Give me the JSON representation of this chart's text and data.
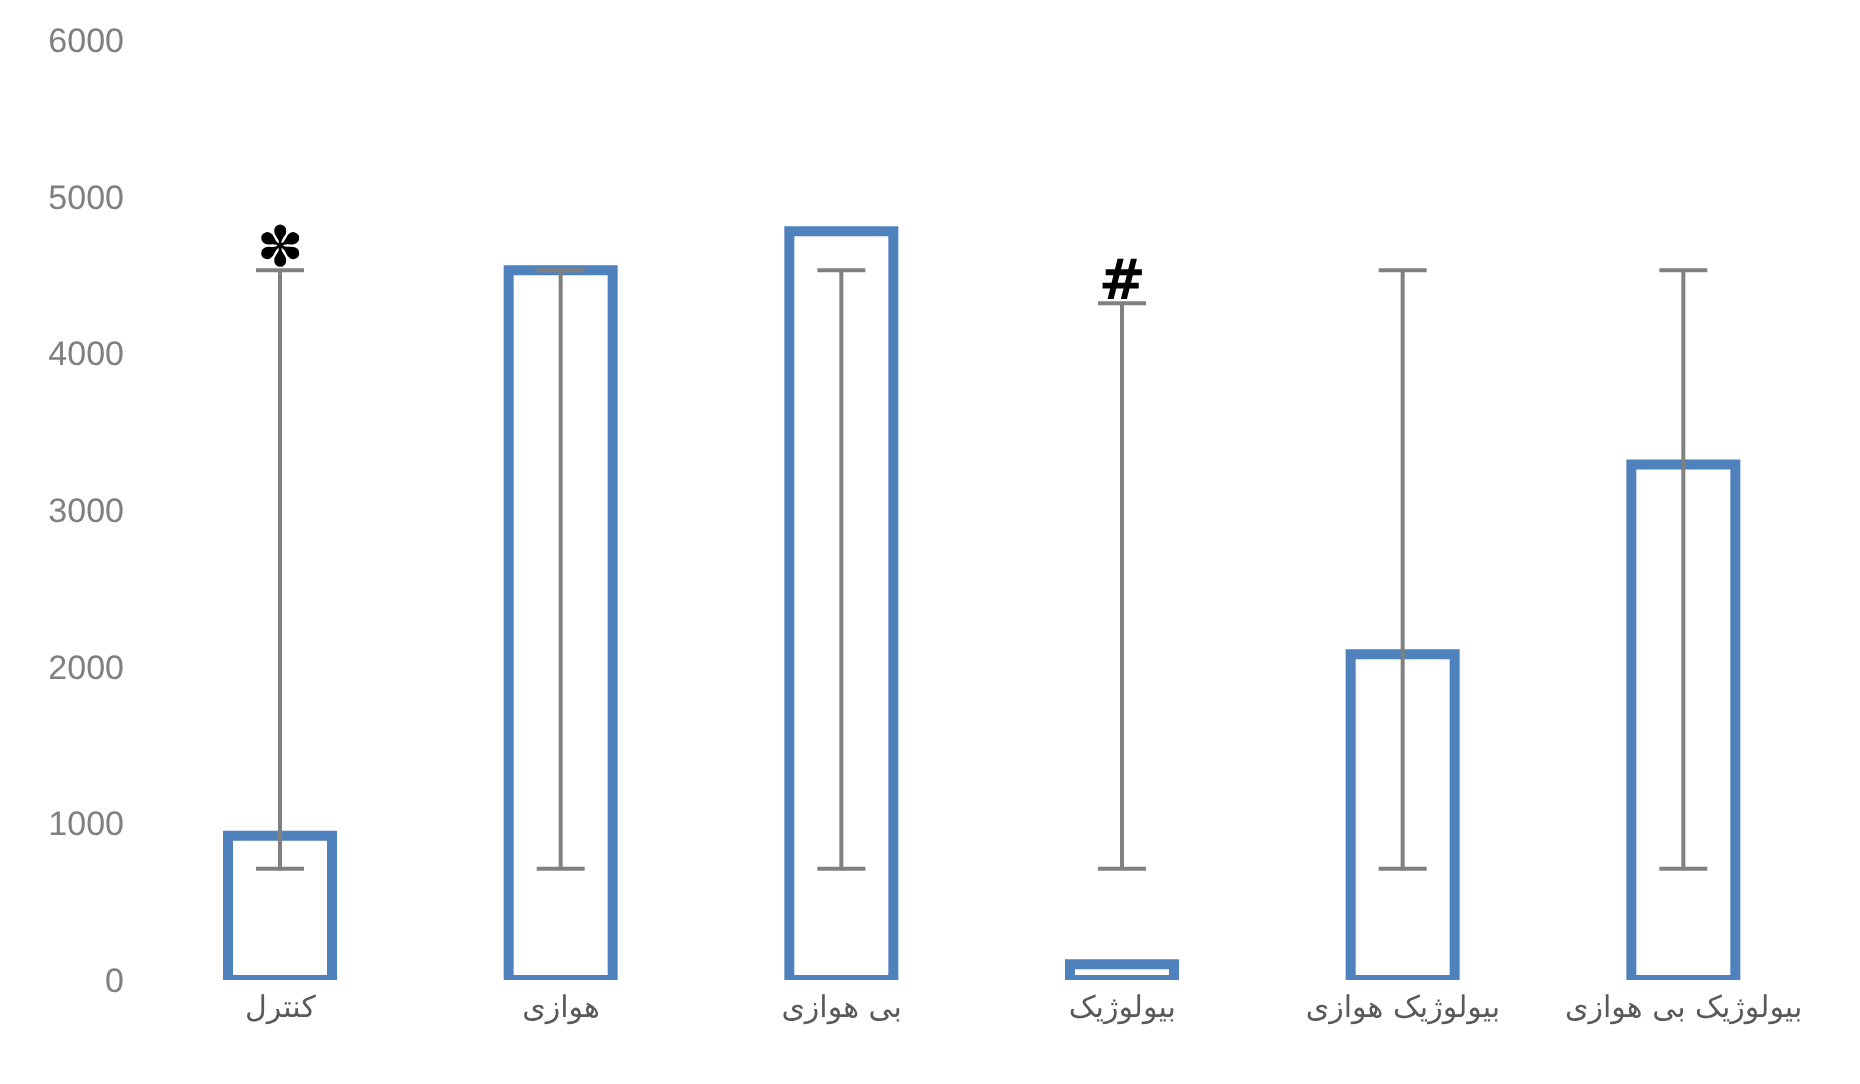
{
  "chart_data": {
    "type": "bar",
    "categories": [
      "کنترل",
      "هوازی",
      "بی هوازی",
      "بیولوژیک",
      "بیولوژیک هوازی",
      "بیولوژیک بی هوازی"
    ],
    "values": [
      920,
      4530,
      4780,
      100,
      2080,
      3290
    ],
    "errors": [
      [
        710,
        4530
      ],
      [
        710,
        4530
      ],
      [
        710,
        4530
      ],
      [
        710,
        4320
      ],
      [
        710,
        4530
      ],
      [
        710,
        4530
      ]
    ],
    "color": "#4f81bd",
    "ylim": [
      0,
      6000
    ],
    "yticks": [
      0,
      1000,
      2000,
      3000,
      4000,
      5000,
      6000
    ],
    "grid": false,
    "annotations": [
      {
        "text": "✽",
        "x": "کنترل",
        "y": 4530
      },
      {
        "text": "#",
        "x": "بیولوژیک",
        "y": 4320
      }
    ]
  }
}
